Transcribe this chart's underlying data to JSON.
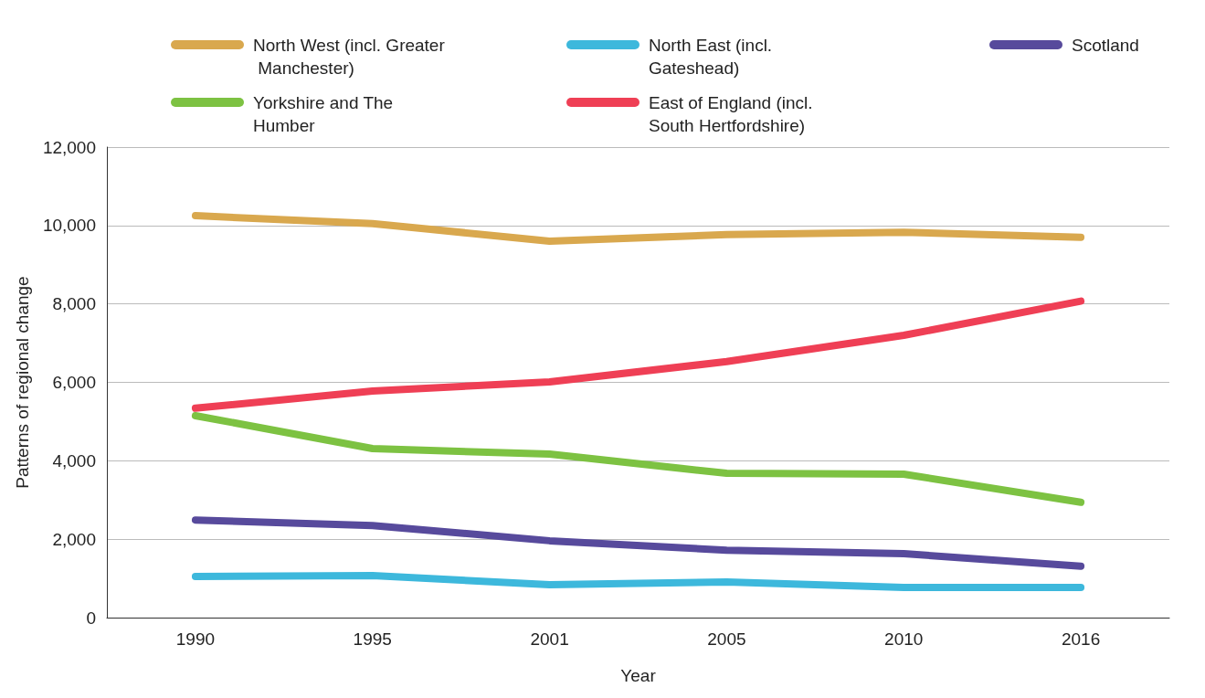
{
  "chart_data": {
    "type": "line",
    "xlabel": "Year",
    "ylabel": "Patterns of regional change",
    "categories": [
      "1990",
      "1995",
      "2001",
      "2005",
      "2010",
      "2016"
    ],
    "series": [
      {
        "name": "North West (incl. Greater Manchester)",
        "color": "#d9a84e",
        "values": [
          10250,
          10050,
          9600,
          9770,
          9830,
          9700
        ]
      },
      {
        "name": "North East (incl. Gateshead)",
        "color": "#3db8dc",
        "values": [
          1050,
          1070,
          840,
          910,
          770,
          770
        ]
      },
      {
        "name": "Scotland",
        "color": "#574a9c",
        "values": [
          2490,
          2350,
          1960,
          1720,
          1630,
          1310
        ]
      },
      {
        "name": "Yorkshire and The Humber",
        "color": "#7dc242",
        "values": [
          5150,
          4310,
          4170,
          3680,
          3660,
          2940
        ]
      },
      {
        "name": "East of England (incl. South Hertfordshire)",
        "color": "#ef3f55",
        "values": [
          5340,
          5780,
          6010,
          6530,
          7200,
          8070
        ]
      }
    ],
    "ylim": [
      0,
      12000
    ],
    "yticks": [
      {
        "value": 0,
        "label": "0"
      },
      {
        "value": 2000,
        "label": "2,000"
      },
      {
        "value": 4000,
        "label": "4,000"
      },
      {
        "value": 6000,
        "label": "6,000"
      },
      {
        "value": 8000,
        "label": "8,000"
      },
      {
        "value": 10000,
        "label": "10,000"
      },
      {
        "value": 12000,
        "label": "12,000"
      }
    ],
    "grid": "y",
    "legend": "top",
    "marker": "none",
    "line_style": "solid"
  }
}
